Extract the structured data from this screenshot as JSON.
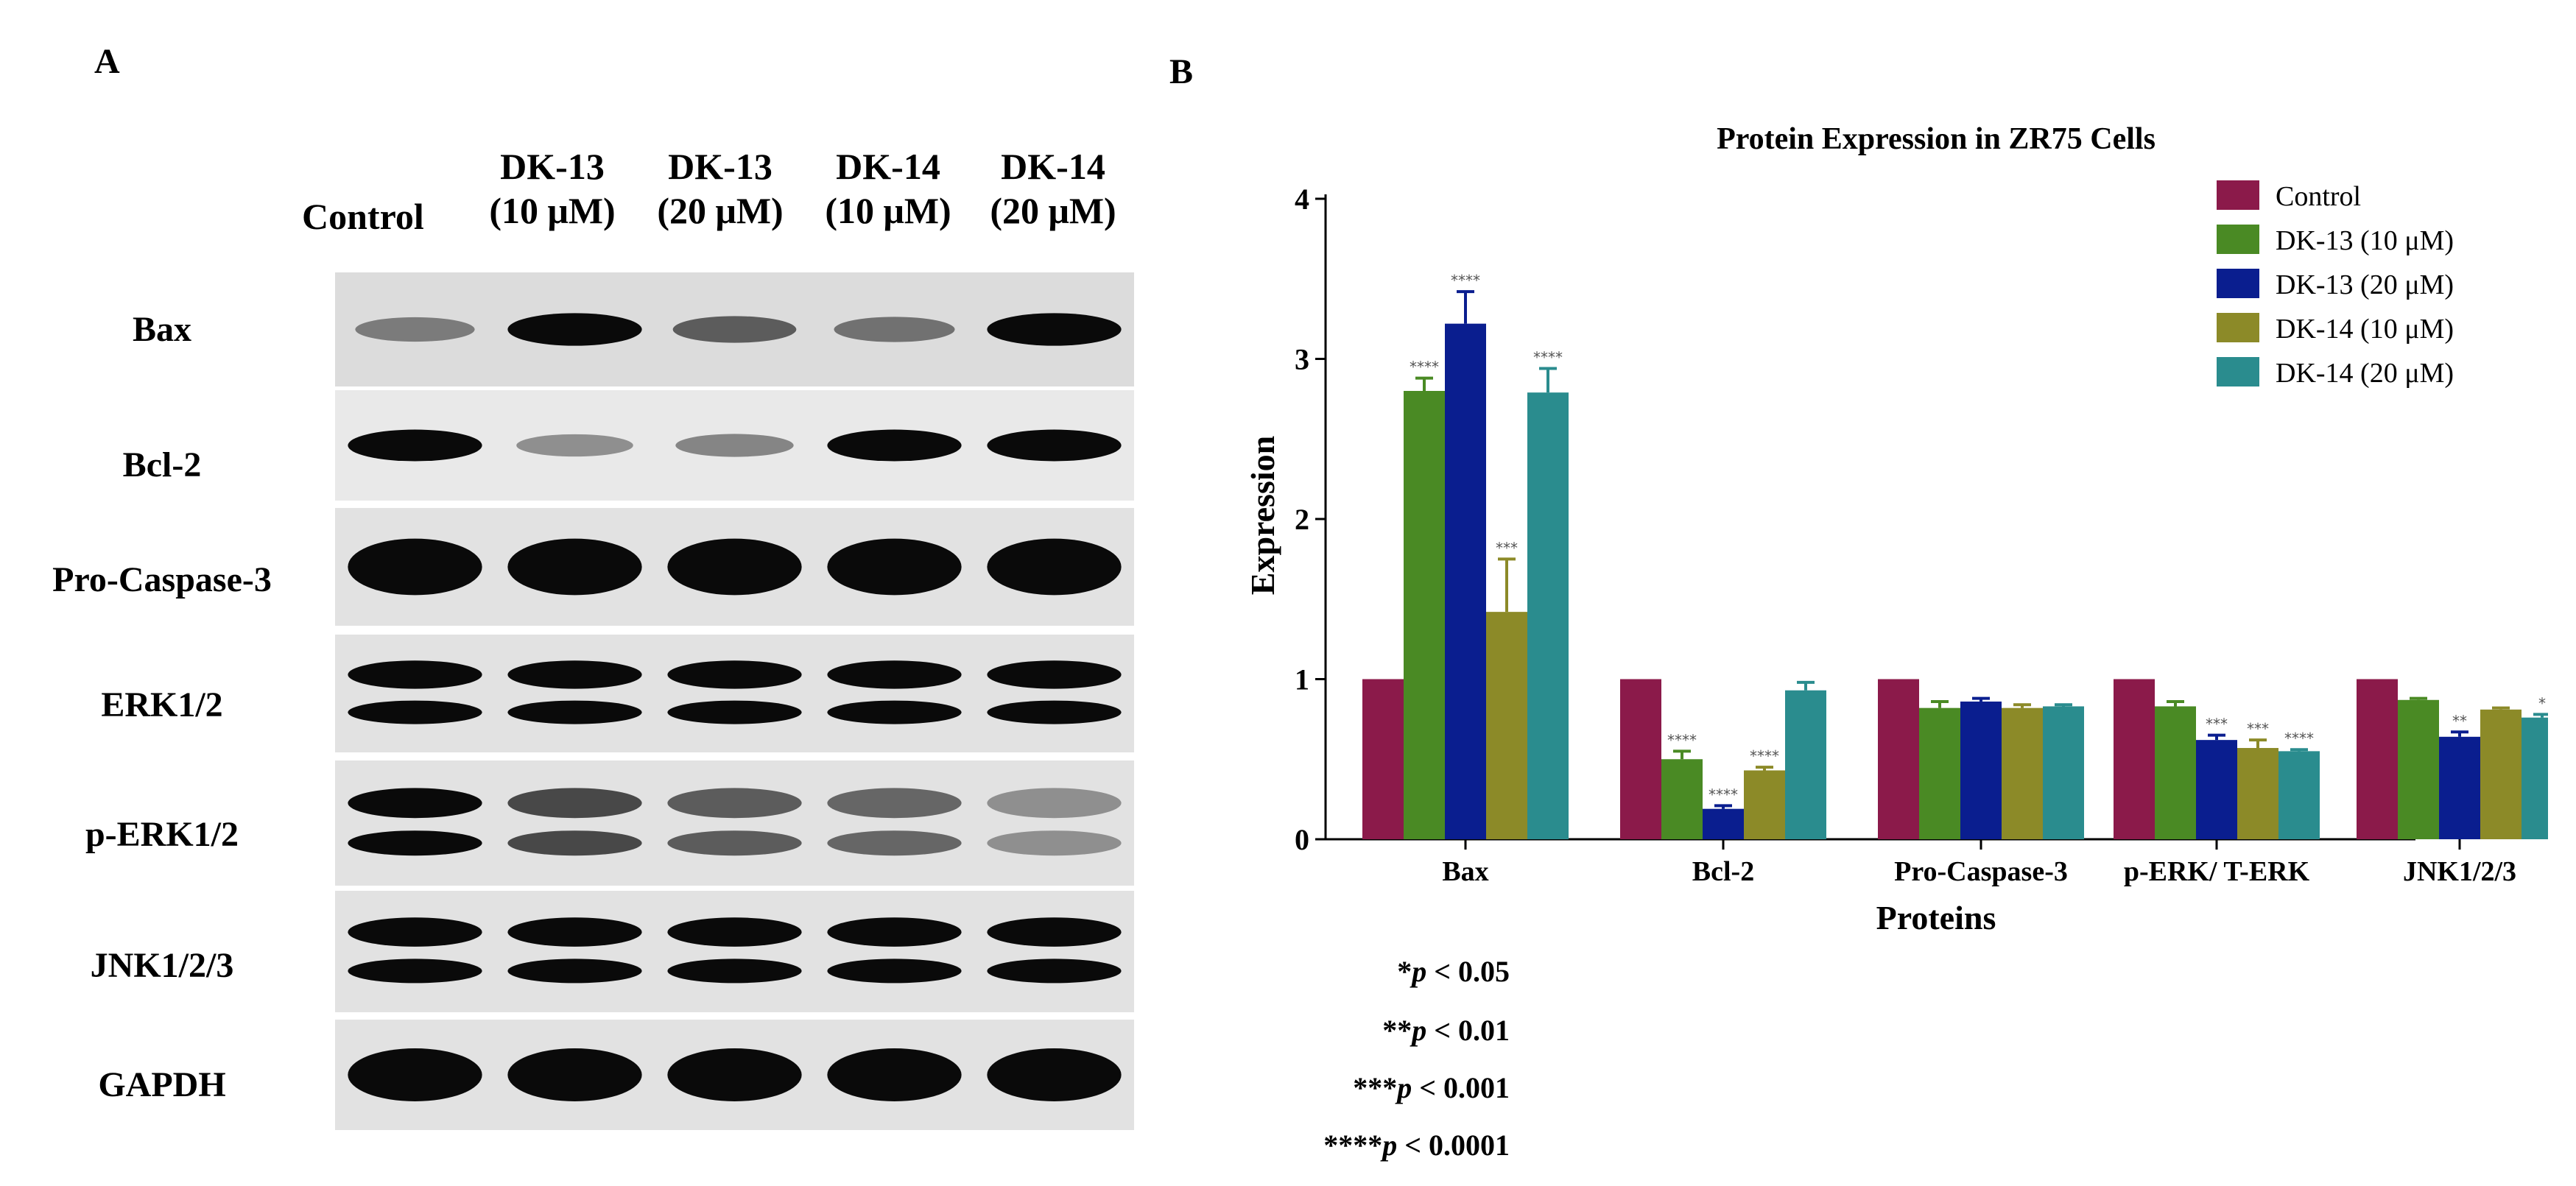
{
  "panel_a": {
    "letter": "A",
    "columns": [
      {
        "line1": "",
        "line2": "Control"
      },
      {
        "line1": "DK-13",
        "line2": "(10 μM)"
      },
      {
        "line1": "DK-13",
        "line2": "(20 μM)"
      },
      {
        "line1": "DK-14",
        "line2": "(10 μM)"
      },
      {
        "line1": "DK-14",
        "line2": "(20 μM)"
      }
    ],
    "rows": [
      {
        "label": "Bax",
        "intensity": [
          0.45,
          1.0,
          0.6,
          0.5,
          1.0
        ],
        "bands": 1
      },
      {
        "label": "Bcl-2",
        "intensity": [
          1.0,
          0.35,
          0.4,
          1.0,
          1.0
        ],
        "bands": 1
      },
      {
        "label": "Pro-Caspase-3",
        "intensity": [
          1.0,
          1.0,
          1.0,
          1.0,
          1.0
        ],
        "bands": 1
      },
      {
        "label": "ERK1/2",
        "intensity": [
          1.0,
          1.0,
          1.0,
          1.0,
          1.0
        ],
        "bands": 2
      },
      {
        "label": "p-ERK1/2",
        "intensity": [
          1.0,
          0.7,
          0.6,
          0.55,
          0.35
        ],
        "bands": 2
      },
      {
        "label": "JNK1/2/3",
        "intensity": [
          1.0,
          1.0,
          1.0,
          1.0,
          1.0
        ],
        "bands": 2
      },
      {
        "label": "GAPDH",
        "intensity": [
          1.0,
          1.0,
          1.0,
          1.0,
          1.0
        ],
        "bands": 1
      }
    ]
  },
  "panel_b": {
    "letter": "B",
    "chart_data": {
      "type": "bar",
      "title": "Protein Expression in ZR75 Cells",
      "xlabel": "Proteins",
      "ylabel": "Expression",
      "ylim": [
        0,
        4
      ],
      "yticks": [
        "0",
        "1",
        "2",
        "3",
        "4"
      ],
      "grid": false,
      "legend_position": "top-right",
      "categories": [
        "Bax",
        "Bcl-2",
        "Pro-Caspase-3",
        "p-ERK/ T-ERK",
        "JNK1/2/3"
      ],
      "series": [
        {
          "name": "Control",
          "color": "#8B1A4A",
          "values": [
            1.0,
            1.0,
            1.0,
            1.0,
            1.0
          ],
          "errors": [
            0,
            0,
            0,
            0,
            0
          ],
          "sig": [
            "",
            "",
            "",
            "",
            ""
          ]
        },
        {
          "name": "DK-13 (10 μM)",
          "color": "#4A8A24",
          "values": [
            2.8,
            0.5,
            0.82,
            0.83,
            0.87
          ],
          "errors": [
            0.08,
            0.05,
            0.04,
            0.03,
            0.01
          ],
          "sig": [
            "****",
            "****",
            "",
            "",
            ""
          ]
        },
        {
          "name": "DK-13 (20 μM)",
          "color": "#0A1E8F",
          "values": [
            3.22,
            0.19,
            0.86,
            0.62,
            0.64
          ],
          "errors": [
            0.2,
            0.02,
            0.02,
            0.03,
            0.03
          ],
          "sig": [
            "****",
            "****",
            "",
            "***",
            "**"
          ]
        },
        {
          "name": "DK-14 (10 μM)",
          "color": "#8C8A28",
          "values": [
            1.42,
            0.43,
            0.82,
            0.57,
            0.81
          ],
          "errors": [
            0.33,
            0.02,
            0.02,
            0.05,
            0.01
          ],
          "sig": [
            "***",
            "****",
            "",
            "***",
            ""
          ]
        },
        {
          "name": "DK-14 (20 μM)",
          "color": "#2A8C8E",
          "values": [
            2.79,
            0.93,
            0.83,
            0.55,
            0.76
          ],
          "errors": [
            0.15,
            0.05,
            0.01,
            0.01,
            0.02
          ],
          "sig": [
            "****",
            "",
            "",
            "****",
            "*"
          ]
        }
      ]
    },
    "footnotes": [
      {
        "stars": "*",
        "p": "p",
        "rest": " < 0.05"
      },
      {
        "stars": "**",
        "p": "p",
        "rest": " < 0.01"
      },
      {
        "stars": "***",
        "p": "p",
        "rest": " < 0.001"
      },
      {
        "stars": "****",
        "p": "p",
        "rest": " < 0.0001"
      }
    ]
  }
}
